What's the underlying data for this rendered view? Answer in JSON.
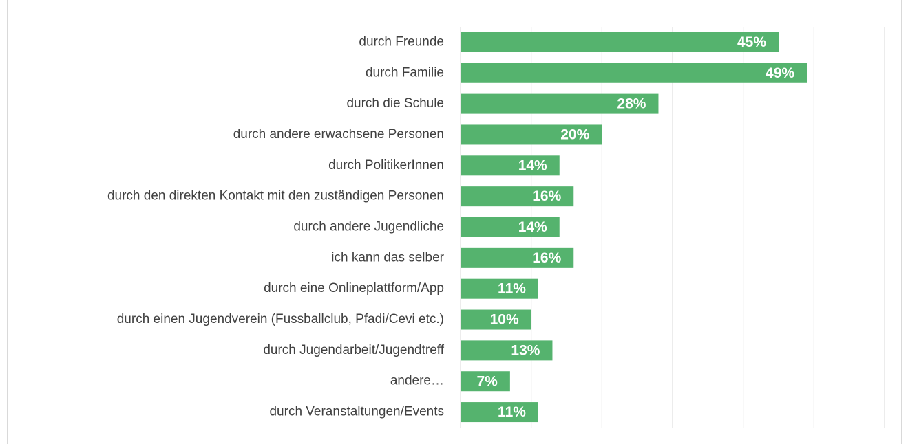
{
  "chart_data": {
    "type": "barh",
    "categories": [
      "durch Freunde",
      "durch Familie",
      "durch die Schule",
      "durch andere erwachsene Personen",
      "durch PolitikerInnen",
      "durch den direkten Kontakt mit den zuständigen Personen",
      "durch andere Jugendliche ",
      "ich kann das selber",
      "durch eine Onlineplattform/App",
      "durch einen Jugendverein (Fussballclub, Pfadi/Cevi etc.)",
      "durch Jugendarbeit/Jugendtreff",
      "andere…",
      "durch Veranstaltungen/Events"
    ],
    "values": [
      45,
      49,
      28,
      20,
      14,
      16,
      14,
      16,
      11,
      10,
      13,
      7,
      11
    ],
    "value_labels": [
      "45%",
      "49%",
      "28%",
      "20%",
      "14%",
      "16%",
      "14%",
      "16%",
      "11%",
      "10%",
      "13%",
      "7%",
      "11%"
    ],
    "color": "#55b36e",
    "xlim": [
      0,
      60
    ],
    "xticks": [
      0,
      10,
      20,
      30,
      40,
      50,
      60
    ],
    "show_tick_labels": false,
    "grid": true
  }
}
